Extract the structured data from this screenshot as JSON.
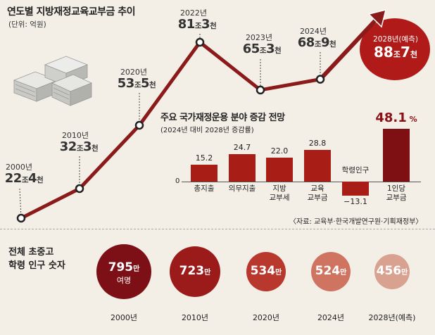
{
  "title": "연도별 지방재정교육교부금 추이",
  "unit": "(단위: 억원)",
  "line_points": [
    {
      "year": "2000년",
      "main": "22",
      "u1": "조",
      "sub": "4",
      "u2": "천"
    },
    {
      "year": "2010년",
      "main": "32",
      "u1": "조",
      "sub": "3",
      "u2": "천"
    },
    {
      "year": "2020년",
      "main": "53",
      "u1": "조",
      "sub": "5",
      "u2": "천"
    },
    {
      "year": "2022년",
      "main": "81",
      "u1": "조",
      "sub": "3",
      "u2": "천"
    },
    {
      "year": "2023년",
      "main": "65",
      "u1": "조",
      "sub": "3",
      "u2": "천"
    },
    {
      "year": "2024년",
      "main": "68",
      "u1": "조",
      "sub": "9",
      "u2": "천"
    },
    {
      "year": "2028년(예측)",
      "main": "88",
      "u1": "조",
      "sub": "7",
      "u2": "천"
    }
  ],
  "bar_section": {
    "title": "주요 국가재정운용 분야 증감 전망",
    "note": "(2024년 대비 2028년 증감률)",
    "zero": "0",
    "pct_unit": "%"
  },
  "source": "〈자료: 교육부·한국개발연구원·기획재정부〉",
  "population": {
    "title_line1": "전체 초중고",
    "title_line2": "학령 인구 숫자",
    "items": [
      {
        "year": "2000년",
        "value": "795",
        "unit": "만",
        "sub": "여명",
        "color": "#7c1016"
      },
      {
        "year": "2010년",
        "value": "723",
        "unit": "만",
        "sub": "",
        "color": "#9b1b1b"
      },
      {
        "year": "2020년",
        "value": "534",
        "unit": "만",
        "sub": "",
        "color": "#b8382e"
      },
      {
        "year": "2024년",
        "value": "524",
        "unit": "만",
        "sub": "",
        "color": "#d07462"
      },
      {
        "year": "2028년(예측)",
        "value": "456",
        "unit": "만",
        "sub": "",
        "color": "#d9a190"
      }
    ]
  },
  "chart_data": [
    {
      "type": "line",
      "title": "연도별 지방재정교육교부금 추이",
      "x": [
        "2000년",
        "2010년",
        "2020년",
        "2022년",
        "2023년",
        "2024년",
        "2028년(예측)"
      ],
      "series": [
        {
          "values": [
            224000,
            323000,
            535000,
            813000,
            653000,
            689000,
            887000
          ]
        }
      ],
      "colors": {
        "line": "#8b1a1a",
        "marker_fill": "#ffffff",
        "forecast_bubble": "#b01a18"
      }
    },
    {
      "type": "bar",
      "title": "주요 국가재정운용 분야 증감 전망",
      "categories": [
        "총지출",
        "의무지출",
        "지방 교부세",
        "교육 교부금",
        "학령인구",
        "1인당 교부금"
      ],
      "values": [
        15.2,
        24.7,
        22.0,
        28.8,
        -13.1,
        48.1
      ],
      "value_labels": [
        "15.2",
        "24.7",
        "22.0",
        "28.8",
        "−13.1",
        "48.1"
      ],
      "colors": {
        "bar": "#a91d17",
        "highlight": "#7e0f13"
      }
    }
  ]
}
